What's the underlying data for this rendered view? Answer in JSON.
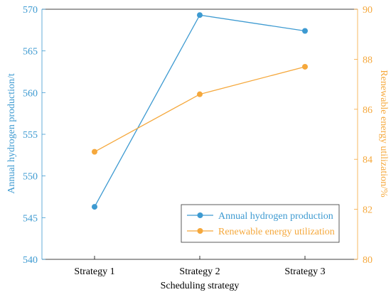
{
  "chart_data": {
    "type": "line",
    "title": "",
    "xlabel": "Scheduling strategy",
    "categories": [
      "Strategy 1",
      "Strategy 2",
      "Strategy 3"
    ],
    "y_left": {
      "label": "Annual hydrogen production/t",
      "ylim": [
        540,
        570
      ],
      "ticks": [
        540,
        545,
        550,
        555,
        560,
        565,
        570
      ],
      "color": "#3d9ad1"
    },
    "y_right": {
      "label": "Renewable energy utilization/%",
      "ylim": [
        80,
        90
      ],
      "ticks": [
        80,
        82,
        84,
        86,
        88,
        90
      ],
      "color": "#f5a83c"
    },
    "series": [
      {
        "name": "Annual hydrogen production",
        "axis": "left",
        "color": "#3d9ad1",
        "values": [
          546.3,
          569.3,
          567.4
        ]
      },
      {
        "name": "Renewable energy utilization",
        "axis": "right",
        "color": "#f5a83c",
        "values": [
          84.3,
          86.6,
          87.7
        ]
      }
    ],
    "grid": false,
    "legend": "bottom-right"
  }
}
